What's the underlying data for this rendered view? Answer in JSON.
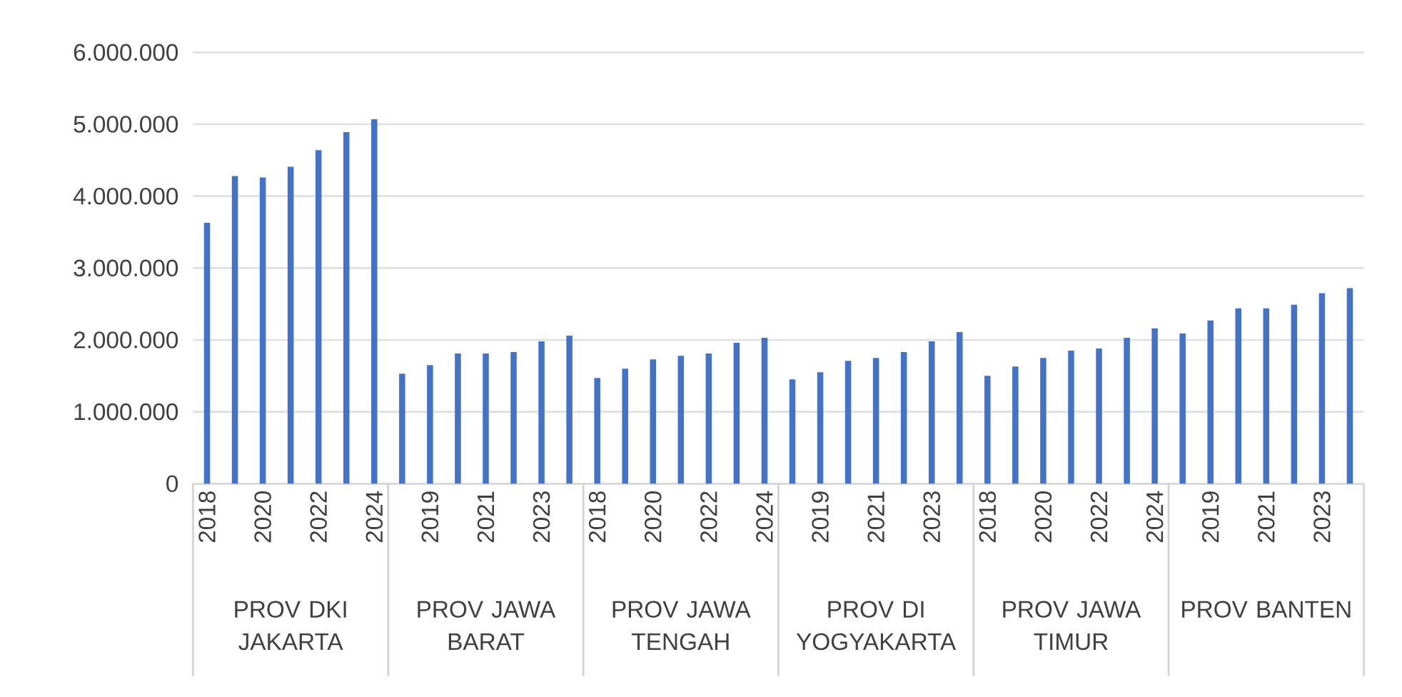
{
  "chart_data": {
    "type": "bar",
    "color": "#4472c4",
    "categories": [
      "2018",
      null,
      "2020",
      null,
      "2022",
      null,
      "2024",
      null,
      "2019",
      null,
      "2021",
      null,
      "2023",
      null,
      "2018",
      null,
      "2020",
      null,
      "2022",
      null,
      "2024",
      null,
      "2019",
      null,
      "2021",
      null,
      "2023",
      null,
      "2018",
      null,
      "2020",
      null,
      "2022",
      null,
      "2024",
      null,
      "2019",
      null,
      "2021",
      null,
      "2023",
      null
    ],
    "values": [
      3630000,
      4280000,
      4260000,
      4410000,
      4640000,
      4890000,
      5070000,
      1530000,
      1650000,
      1810000,
      1810000,
      1830000,
      1980000,
      2060000,
      1470000,
      1600000,
      1730000,
      1780000,
      1810000,
      1960000,
      2030000,
      1450000,
      1550000,
      1710000,
      1750000,
      1830000,
      1980000,
      2110000,
      1500000,
      1630000,
      1750000,
      1850000,
      1880000,
      2030000,
      2160000,
      2090000,
      2270000,
      2440000,
      2440000,
      2490000,
      2650000,
      2720000
    ],
    "annotations": [
      "PROV DKI JAKARTA",
      "PROV JAWA BARAT",
      "PROV JAWA TENGAH",
      "PROV DI YOGYAKARTA",
      "PROV JAWA TIMUR",
      "PROV BANTEN"
    ],
    "ylim": [
      0,
      6000000
    ],
    "yticks": [
      0,
      {
        "value": 1000000,
        "label": "1.000.000"
      },
      {
        "value": 2000000,
        "label": "2.000.000"
      },
      {
        "value": 3000000,
        "label": "3.000.000"
      },
      {
        "value": 4000000,
        "label": "4.000.000"
      },
      {
        "value": 5000000,
        "label": "5.000.000"
      },
      {
        "value": 6000000,
        "label": "6.000.000"
      }
    ],
    "grid": "y"
  }
}
